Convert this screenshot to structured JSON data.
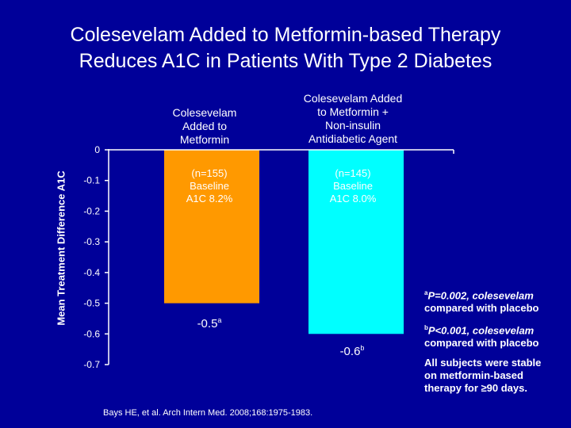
{
  "title": {
    "line1": "Colesevelam Added to Metformin-based Therapy",
    "line2": "Reduces A1C in Patients With Type 2 Diabetes"
  },
  "chart_data": {
    "type": "bar",
    "ylabel": "Mean Treatment Difference A1C",
    "ylim": [
      -0.7,
      0
    ],
    "yticks": [
      "0",
      "-0.1",
      "-0.2",
      "-0.3",
      "-0.4",
      "-0.5",
      "-0.6",
      "-0.7"
    ],
    "ytick_values": [
      0,
      -0.1,
      -0.2,
      -0.3,
      -0.4,
      -0.5,
      -0.6,
      -0.7
    ],
    "categories": [
      {
        "line1": "Colesevelam",
        "line2": "Added to",
        "line3": "Metformin"
      },
      {
        "line1": "Colesevelam Added",
        "line2": "to Metformin +",
        "line3": "Non-insulin",
        "line4": "Antidiabetic Agent"
      }
    ],
    "values": [
      -0.5,
      -0.6
    ],
    "colors": [
      "#ff9900",
      "#00ffff"
    ],
    "value_labels": [
      {
        "value": "-0.5",
        "sup": "a"
      },
      {
        "value": "-0.6",
        "sup": "b"
      }
    ],
    "bar_notes": [
      {
        "n": "(n=155)",
        "line2": "Baseline",
        "line3": "A1C 8.2%"
      },
      {
        "n": "(n=145)",
        "line2": "Baseline",
        "line3": "A1C 8.0%"
      }
    ]
  },
  "footnotes": {
    "a": {
      "sup": "a",
      "text1": "P=0.002, colesevelam",
      "text2": "compared with placebo"
    },
    "b": {
      "sup": "b",
      "text1": "P<0.001, colesevelam",
      "text2": "compared with placebo"
    },
    "stable": {
      "line1": "All subjects were stable",
      "line2": "on metformin-based",
      "line3": "therapy for ≥90 days."
    }
  },
  "citation": "Bays HE, et al. Arch Intern Med. 2008;168:1975-1983."
}
